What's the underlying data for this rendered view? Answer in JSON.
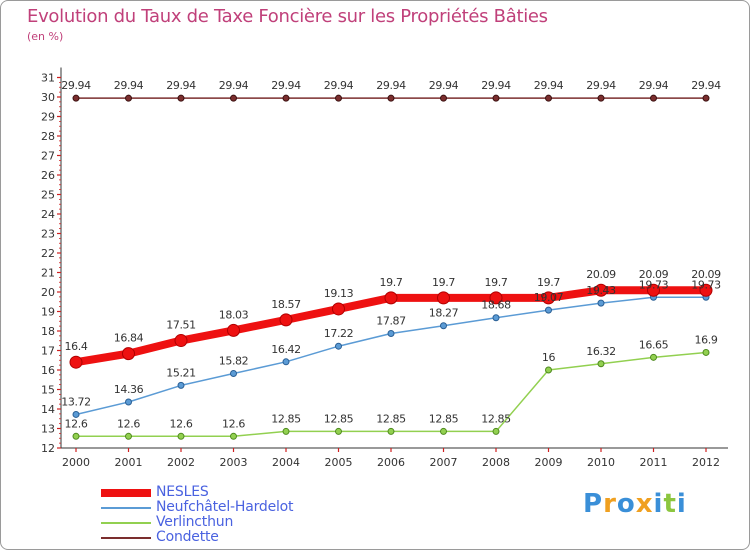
{
  "title": "Evolution du Taux de Taxe Foncière sur les Propriétés Bâties",
  "unit_label": "(en %)",
  "logo": {
    "text": "Proxiti",
    "letters": [
      {
        "ch": "P",
        "color": "#3a8fd8"
      },
      {
        "ch": "r",
        "color": "#f0a020"
      },
      {
        "ch": "o",
        "color": "#3a8fd8"
      },
      {
        "ch": "x",
        "color": "#f0a020"
      },
      {
        "ch": "i",
        "color": "#3a8fd8"
      },
      {
        "ch": "t",
        "color": "#8cc63f"
      },
      {
        "ch": "i",
        "color": "#3a8fd8"
      }
    ]
  },
  "chart_data": {
    "type": "line",
    "title": "Evolution du Taux de Taxe Foncière sur les Propriétés Bâties",
    "ylabel": "(en %)",
    "xlabel": "",
    "x": [
      "2000",
      "2001",
      "2002",
      "2003",
      "2004",
      "2005",
      "2006",
      "2007",
      "2008",
      "2009",
      "2010",
      "2011",
      "2012"
    ],
    "ylim": [
      12,
      31
    ],
    "yticks": [
      12,
      13,
      14,
      15,
      16,
      17,
      18,
      19,
      20,
      21,
      22,
      23,
      24,
      25,
      26,
      27,
      28,
      29,
      30,
      31
    ],
    "grid": false,
    "legend": "bottom-left",
    "series": [
      {
        "name": "NESLES",
        "color": "#ee1111",
        "values": [
          16.4,
          16.84,
          17.51,
          18.03,
          18.57,
          19.13,
          19.7,
          19.7,
          19.7,
          19.7,
          20.09,
          20.09,
          20.09
        ],
        "labels": [
          "16.4",
          "16.84",
          "17.51",
          "18.03",
          "18.57",
          "19.13",
          "19.7",
          "19.7",
          "19.7",
          "19.7",
          "20.09",
          "20.09",
          "20.09"
        ]
      },
      {
        "name": "Neufchâtel-Hardelot",
        "color": "#5b9bd5",
        "values": [
          13.72,
          14.36,
          15.21,
          15.82,
          16.42,
          17.22,
          17.87,
          18.27,
          18.68,
          19.07,
          19.43,
          19.73,
          19.73
        ],
        "labels": [
          "13.72",
          "14.36",
          "15.21",
          "15.82",
          "16.42",
          "17.22",
          "17.87",
          "18.27",
          "18.68",
          "19.07",
          "19.43",
          "19.73",
          "19.73"
        ]
      },
      {
        "name": "Verlincthun",
        "color": "#92d050",
        "values": [
          12.6,
          12.6,
          12.6,
          12.6,
          12.85,
          12.85,
          12.85,
          12.85,
          12.85,
          16,
          16.32,
          16.65,
          16.9
        ],
        "labels": [
          "12.6",
          "12.6",
          "12.6",
          "12.6",
          "12.85",
          "12.85",
          "12.85",
          "12.85",
          "12.85",
          "16",
          "16.32",
          "16.65",
          "16.9"
        ]
      },
      {
        "name": "Condette",
        "color": "#7b2e2e",
        "values": [
          29.94,
          29.94,
          29.94,
          29.94,
          29.94,
          29.94,
          29.94,
          29.94,
          29.94,
          29.94,
          29.94,
          29.94,
          29.94
        ],
        "labels": [
          "29.94",
          "29.94",
          "29.94",
          "29.94",
          "29.94",
          "29.94",
          "29.94",
          "29.94",
          "29.94",
          "29.94",
          "29.94",
          "29.94",
          "29.94"
        ]
      }
    ]
  }
}
